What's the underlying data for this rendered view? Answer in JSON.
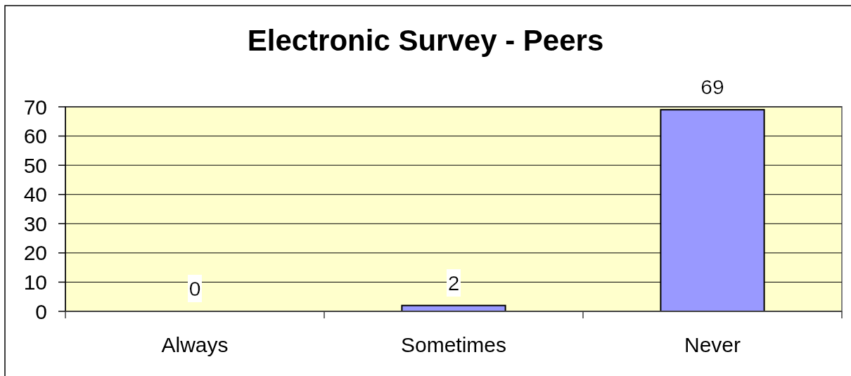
{
  "chart_data": {
    "type": "bar",
    "title": "Electronic Survey - Peers",
    "categories": [
      "Always",
      "Sometimes",
      "Never"
    ],
    "values": [
      0,
      2,
      69
    ],
    "color": "#9999ff",
    "ylim": [
      0,
      70
    ],
    "yticks": [
      0,
      10,
      20,
      30,
      40,
      50,
      60,
      70
    ],
    "grid": "y",
    "data_labels": true
  }
}
